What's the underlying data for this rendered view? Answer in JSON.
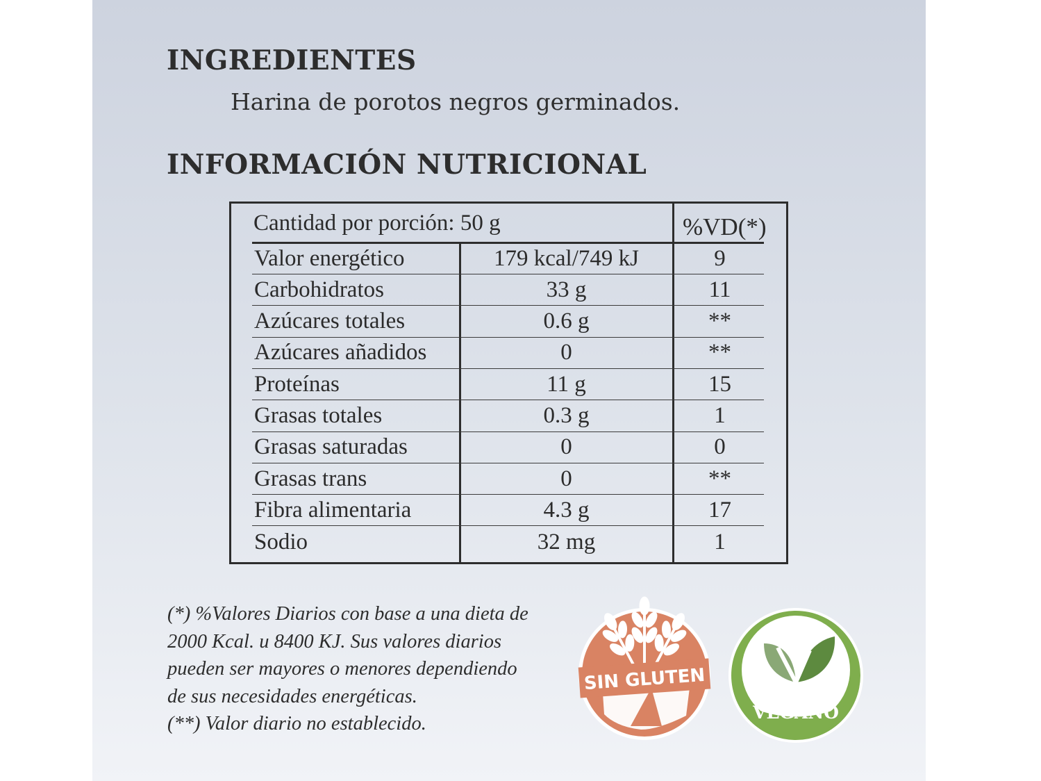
{
  "ingredients": {
    "heading": "INGREDIENTES",
    "text": "Harina de porotos negros germinados."
  },
  "nutrition": {
    "heading": "INFORMACIÓN NUTRICIONAL",
    "serving_label": "Cantidad por porción: 50 g",
    "vd_header": "%VD(*)",
    "rows": [
      {
        "name": "Valor energético",
        "amount": "179 kcal/749 kJ",
        "vd": "9"
      },
      {
        "name": "Carbohidratos",
        "amount": "33 g",
        "vd": "11"
      },
      {
        "name": "Azúcares totales",
        "amount": "0.6 g",
        "vd": "**"
      },
      {
        "name": "Azúcares añadidos",
        "amount": "0",
        "vd": "**"
      },
      {
        "name": "Proteínas",
        "amount": "11 g",
        "vd": "15"
      },
      {
        "name": "Grasas totales",
        "amount": "0.3 g",
        "vd": "1"
      },
      {
        "name": "Grasas saturadas",
        "amount": "0",
        "vd": "0"
      },
      {
        "name": "Grasas trans",
        "amount": "0",
        "vd": "**"
      },
      {
        "name": "Fibra alimentaria",
        "amount": "4.3 g",
        "vd": "17"
      },
      {
        "name": "Sodio",
        "amount": "32 mg",
        "vd": "1"
      }
    ]
  },
  "footnote": {
    "lines": [
      "(*) %Valores Diarios con base a una dieta de",
      "2000 Kcal. u 8400 KJ. Sus valores diarios",
      "pueden ser mayores o menores dependiendo",
      "de sus necesidades energéticas.",
      "(**) Valor diario no establecido."
    ]
  },
  "badges": {
    "gluten_free": {
      "label": "SIN GLUTEN",
      "icon": "wheat-crossed-icon",
      "color": "#d98363"
    },
    "vegan": {
      "label": "VEGANO",
      "icon": "leaf-icon",
      "color": "#7fae4d"
    }
  }
}
